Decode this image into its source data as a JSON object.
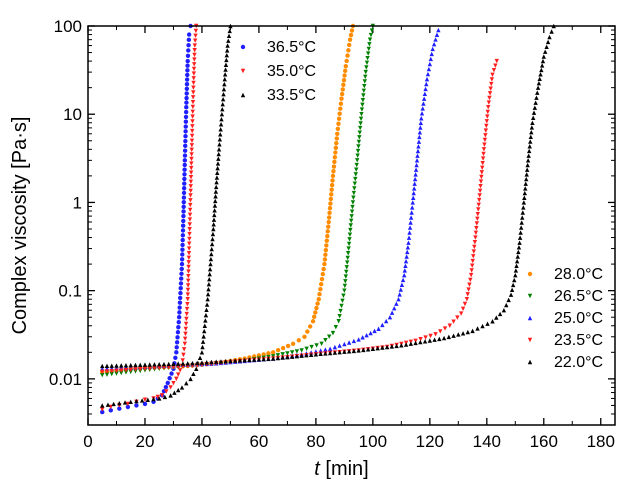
{
  "chart_data": {
    "type": "scatter",
    "xlabel_italic": "t",
    "xlabel_unit": " [min]",
    "ylabel": "Complex viscosity [Pa·s]",
    "xlim": [
      0,
      185
    ],
    "ylim": [
      0.003,
      100
    ],
    "yscale": "log",
    "xticks": [
      0,
      20,
      40,
      60,
      80,
      100,
      120,
      140,
      160,
      180
    ],
    "xtick_labels": [
      "0",
      "20",
      "40",
      "60",
      "80",
      "100",
      "120",
      "140",
      "160",
      "180"
    ],
    "yticks": [
      0.01,
      0.1,
      1,
      10,
      100
    ],
    "ytick_labels": [
      "0.01",
      "0.1",
      "1",
      "10",
      "100"
    ],
    "legends": [
      {
        "placement": "top-left-inside",
        "entries": [
          "36.5°C",
          "35.0°C",
          "33.5°C"
        ]
      },
      {
        "placement": "bottom-right-inside",
        "entries": [
          "28.0°C",
          "26.5°C",
          "25.0°C",
          "23.5°C",
          "22.0°C"
        ]
      }
    ],
    "series": [
      {
        "name": "36.5°C",
        "color": "#1f1fff",
        "marker": "circle",
        "x": [
          5,
          8,
          11,
          14,
          17,
          20,
          23,
          26,
          28,
          30,
          31,
          32,
          33,
          33.5,
          34,
          34.5,
          35,
          35.5,
          36
        ],
        "y": [
          0.0042,
          0.0044,
          0.0046,
          0.0048,
          0.005,
          0.0052,
          0.0055,
          0.0065,
          0.009,
          0.013,
          0.02,
          0.05,
          0.2,
          0.7,
          3,
          12,
          40,
          80,
          100
        ]
      },
      {
        "name": "35.0°C",
        "color": "#ff1f1f",
        "marker": "triangle-down",
        "x": [
          5,
          8,
          11,
          14,
          17,
          20,
          23,
          26,
          29,
          31,
          33,
          34,
          35,
          35.5,
          36,
          36.5,
          37,
          37.5,
          38
        ],
        "y": [
          0.0045,
          0.0048,
          0.005,
          0.0052,
          0.0055,
          0.0058,
          0.006,
          0.0065,
          0.008,
          0.01,
          0.014,
          0.025,
          0.08,
          0.3,
          1.2,
          5,
          20,
          60,
          100
        ]
      },
      {
        "name": "33.5°C",
        "color": "#000000",
        "marker": "triangle-up",
        "x": [
          5,
          9,
          13,
          17,
          21,
          25,
          29,
          33,
          36,
          38,
          40,
          41,
          42,
          43,
          44,
          45,
          46,
          47,
          48,
          49,
          50
        ],
        "y": [
          0.005,
          0.0052,
          0.0054,
          0.0056,
          0.0058,
          0.006,
          0.0065,
          0.008,
          0.01,
          0.013,
          0.02,
          0.04,
          0.08,
          0.2,
          0.5,
          1.5,
          4,
          10,
          25,
          60,
          100
        ]
      },
      {
        "name": "28.0°C",
        "color": "#ff8c00",
        "marker": "circle",
        "x": [
          5,
          15,
          25,
          35,
          45,
          55,
          65,
          72,
          76,
          79,
          81,
          83,
          84.5,
          86,
          87.5,
          89,
          90.5,
          92,
          93
        ],
        "y": [
          0.012,
          0.013,
          0.0135,
          0.014,
          0.015,
          0.017,
          0.02,
          0.025,
          0.03,
          0.045,
          0.08,
          0.2,
          0.6,
          2,
          6,
          15,
          35,
          70,
          100
        ]
      },
      {
        "name": "26.5°C",
        "color": "#008000",
        "marker": "triangle-down",
        "x": [
          5,
          15,
          25,
          35,
          45,
          55,
          65,
          75,
          82,
          86,
          88,
          90,
          91.5,
          93,
          94.5,
          96,
          97.5,
          99,
          100
        ],
        "y": [
          0.011,
          0.012,
          0.013,
          0.014,
          0.015,
          0.016,
          0.018,
          0.021,
          0.025,
          0.033,
          0.045,
          0.1,
          0.3,
          1,
          3,
          10,
          30,
          70,
          100
        ]
      },
      {
        "name": "25.0°C",
        "color": "#1f1fff",
        "marker": "triangle-up",
        "x": [
          5,
          15,
          25,
          35,
          45,
          55,
          65,
          75,
          85,
          95,
          102,
          106,
          109,
          111,
          112.5,
          114,
          115.5,
          117,
          119,
          121,
          123
        ],
        "y": [
          0.013,
          0.0135,
          0.014,
          0.0145,
          0.015,
          0.016,
          0.017,
          0.019,
          0.022,
          0.028,
          0.037,
          0.05,
          0.08,
          0.15,
          0.35,
          1,
          3,
          9,
          25,
          55,
          90
        ]
      },
      {
        "name": "23.5°C",
        "color": "#ff1f1f",
        "marker": "triangle-down",
        "x": [
          5,
          20,
          35,
          50,
          65,
          80,
          95,
          105,
          115,
          122,
          127,
          131,
          133,
          134.5,
          136,
          137.5,
          139,
          140.5,
          142,
          143.5
        ],
        "y": [
          0.012,
          0.013,
          0.014,
          0.0155,
          0.017,
          0.019,
          0.021,
          0.023,
          0.027,
          0.032,
          0.04,
          0.055,
          0.08,
          0.15,
          0.4,
          1.2,
          4,
          12,
          28,
          40
        ]
      },
      {
        "name": "22.0°C",
        "color": "#000000",
        "marker": "triangle-up",
        "x": [
          5,
          20,
          35,
          50,
          65,
          80,
          95,
          110,
          125,
          135,
          142,
          146,
          148.5,
          150,
          151.5,
          153,
          154.5,
          156,
          158,
          160,
          162,
          163.5
        ],
        "y": [
          0.014,
          0.0145,
          0.015,
          0.016,
          0.017,
          0.019,
          0.021,
          0.024,
          0.029,
          0.035,
          0.045,
          0.06,
          0.09,
          0.15,
          0.35,
          1,
          3,
          8,
          20,
          45,
          75,
          100
        ]
      }
    ]
  }
}
